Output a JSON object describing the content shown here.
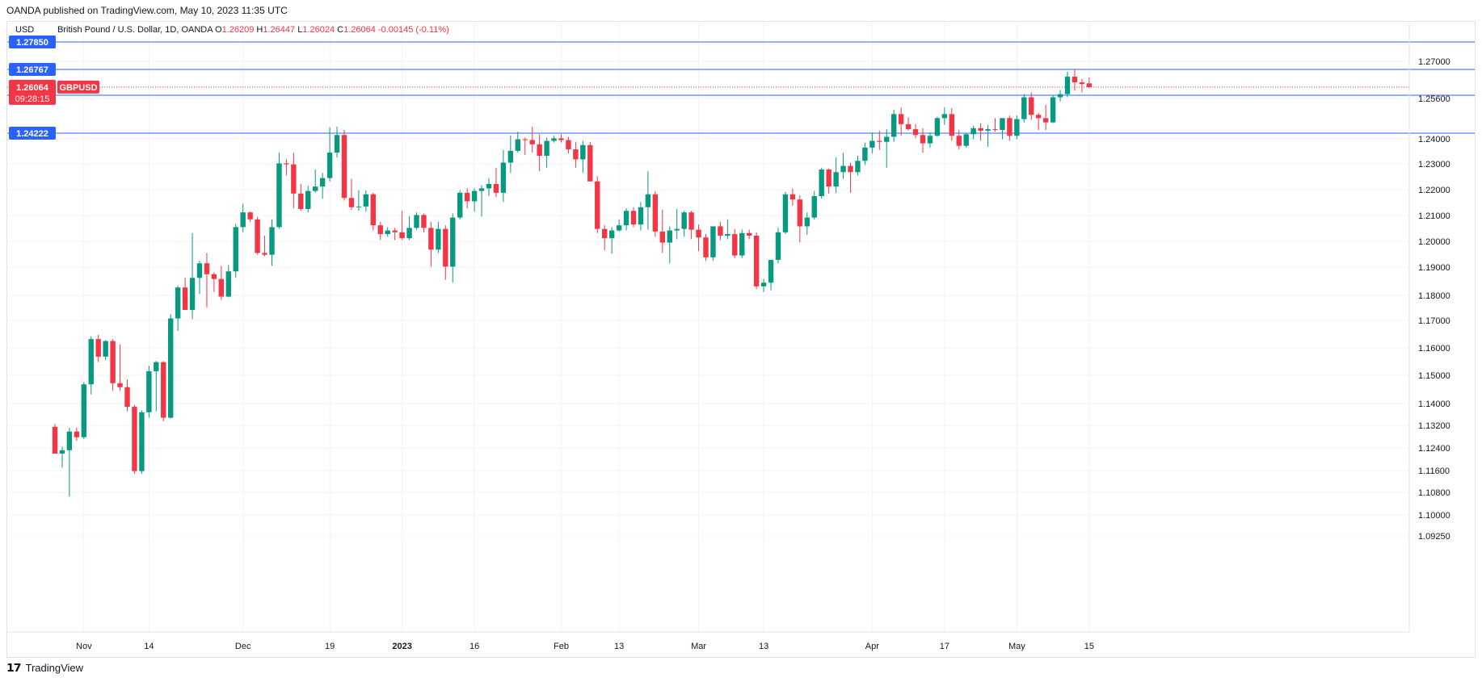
{
  "header": {
    "published_text": "OANDA published on TradingView.com, May 10, 2023 11:35 UTC"
  },
  "footer": {
    "brand": "TradingView",
    "brand_icon": "tradingview-logo-icon"
  },
  "chart_data": {
    "type": "candlestick",
    "currency_label": "USD",
    "symbol_title": "British Pound / U.S. Dollar, 1D, OANDA",
    "ohlc_readout": {
      "o_label": "O",
      "o": "1.26209",
      "h_label": "H",
      "h": "1.26447",
      "l_label": "L",
      "l": "1.26024",
      "c_label": "C",
      "c": "1.26064",
      "change": "-0.00145 (-0.11%)"
    },
    "last_price": {
      "price": "1.26064",
      "symbol": "GBPUSD",
      "countdown": "09:28:15",
      "color": "#f23645"
    },
    "horizontal_levels": [
      {
        "price": 1.2785,
        "label": "1.27850"
      },
      {
        "price": 1.26767,
        "label": "1.26767"
      },
      {
        "price": 1.25736,
        "label": "1.25736"
      },
      {
        "price": 1.24222,
        "label": "1.24222"
      }
    ],
    "level_color": "#2962ff",
    "y_ticks": [
      "1.27000",
      "1.25600",
      "1.24000",
      "1.23000",
      "1.22000",
      "1.21000",
      "1.20000",
      "1.19000",
      "1.18000",
      "1.17000",
      "1.16000",
      "1.15000",
      "1.14000",
      "1.13200",
      "1.12400",
      "1.11600",
      "1.10800",
      "1.10000",
      "1.09250"
    ],
    "x_ticks": [
      {
        "label": "Nov",
        "index": 4,
        "bold": false
      },
      {
        "label": "14",
        "index": 13,
        "bold": false
      },
      {
        "label": "Dec",
        "index": 26,
        "bold": false
      },
      {
        "label": "19",
        "index": 38,
        "bold": false
      },
      {
        "label": "2023",
        "index": 48,
        "bold": true
      },
      {
        "label": "16",
        "index": 58,
        "bold": false
      },
      {
        "label": "Feb",
        "index": 70,
        "bold": false
      },
      {
        "label": "13",
        "index": 78,
        "bold": false
      },
      {
        "label": "Mar",
        "index": 89,
        "bold": false
      },
      {
        "label": "13",
        "index": 98,
        "bold": false
      },
      {
        "label": "Apr",
        "index": 113,
        "bold": false
      },
      {
        "label": "17",
        "index": 123,
        "bold": false
      },
      {
        "label": "May",
        "index": 133,
        "bold": false
      },
      {
        "label": "15",
        "index": 143,
        "bold": false
      }
    ],
    "up_color": "#089981",
    "down_color": "#f23645",
    "candles": [
      [
        1.1315,
        1.1325,
        1.1225,
        1.122
      ],
      [
        1.122,
        1.1245,
        1.117,
        1.1232
      ],
      [
        1.1232,
        1.1312,
        1.1065,
        1.1298
      ],
      [
        1.1298,
        1.1312,
        1.1265,
        1.1278
      ],
      [
        1.1278,
        1.1475,
        1.1272,
        1.1468
      ],
      [
        1.1468,
        1.1642,
        1.1432,
        1.1632
      ],
      [
        1.1632,
        1.1648,
        1.1548,
        1.1568
      ],
      [
        1.1568,
        1.1628,
        1.1555,
        1.1625
      ],
      [
        1.1625,
        1.1632,
        1.1445,
        1.1472
      ],
      [
        1.1472,
        1.1612,
        1.1445,
        1.1458
      ],
      [
        1.1458,
        1.1485,
        1.1372,
        1.1388
      ],
      [
        1.1388,
        1.1395,
        1.1148,
        1.1158
      ],
      [
        1.1158,
        1.1375,
        1.1148,
        1.1368
      ],
      [
        1.1368,
        1.1535,
        1.1348,
        1.1515
      ],
      [
        1.1515,
        1.1552,
        1.1372,
        1.1548
      ],
      [
        1.1548,
        1.1552,
        1.1335,
        1.1348
      ],
      [
        1.1348,
        1.1725,
        1.1345,
        1.1708
      ],
      [
        1.1708,
        1.1835,
        1.1662,
        1.1828
      ],
      [
        1.1828,
        1.1862,
        1.1745,
        1.1742
      ],
      [
        1.1742,
        1.2032,
        1.1705,
        1.1862
      ],
      [
        1.1862,
        1.1925,
        1.1805,
        1.1915
      ],
      [
        1.1915,
        1.1955,
        1.1752,
        1.1875
      ],
      [
        1.1875,
        1.1882,
        1.1812,
        1.1858
      ],
      [
        1.1858,
        1.1905,
        1.1782,
        1.1795
      ],
      [
        1.1795,
        1.1908,
        1.1792,
        1.1885
      ],
      [
        1.1885,
        1.2068,
        1.1862,
        1.2055
      ],
      [
        1.2055,
        1.2145,
        1.2035,
        1.2112
      ],
      [
        1.2112,
        1.2115,
        1.2075,
        1.2085
      ],
      [
        1.2085,
        1.2095,
        1.1948,
        1.1955
      ],
      [
        1.1955,
        1.2022,
        1.1942,
        1.1948
      ],
      [
        1.1948,
        1.2085,
        1.1905,
        1.2055
      ],
      [
        1.2055,
        1.2345,
        1.2048,
        1.2302
      ],
      [
        1.2302,
        1.2318,
        1.2255,
        1.2298
      ],
      [
        1.2298,
        1.2345,
        1.2128,
        1.2185
      ],
      [
        1.2185,
        1.2222,
        1.2118,
        1.2125
      ],
      [
        1.2125,
        1.2215,
        1.2112,
        1.2195
      ],
      [
        1.2195,
        1.2278,
        1.2188,
        1.2212
      ],
      [
        1.2212,
        1.2265,
        1.2165,
        1.2245
      ],
      [
        1.2245,
        1.2445,
        1.2232,
        1.2345
      ],
      [
        1.2345,
        1.2448,
        1.2325,
        1.2415
      ],
      [
        1.2415,
        1.2435,
        1.2158,
        1.2168
      ],
      [
        1.2168,
        1.2242,
        1.2122,
        1.2132
      ],
      [
        1.2132,
        1.2198,
        1.2118,
        1.2135
      ],
      [
        1.2135,
        1.2198,
        1.2115,
        1.2182
      ],
      [
        1.2182,
        1.2188,
        1.2042,
        1.2062
      ],
      [
        1.2062,
        1.2075,
        1.2005,
        1.2028
      ],
      [
        1.2028,
        1.2055,
        1.2018,
        1.2042
      ],
      [
        1.2042,
        1.2052,
        1.2005,
        1.2035
      ],
      [
        1.2035,
        1.2118,
        1.2005,
        1.2012
      ],
      [
        1.2012,
        1.2098,
        1.2005,
        1.2052
      ],
      [
        1.2052,
        1.2112,
        1.2045,
        1.2102
      ],
      [
        1.2102,
        1.2108,
        1.2035,
        1.2052
      ],
      [
        1.2052,
        1.2075,
        1.1902,
        1.1968
      ],
      [
        1.1968,
        1.2075,
        1.1955,
        1.2048
      ],
      [
        1.2048,
        1.2062,
        1.1855,
        1.1902
      ],
      [
        1.1902,
        1.2108,
        1.1845,
        1.2092
      ],
      [
        1.2092,
        1.2198,
        1.2085,
        1.2188
      ],
      [
        1.2188,
        1.2205,
        1.2128,
        1.2155
      ],
      [
        1.2155,
        1.2205,
        1.2115,
        1.2195
      ],
      [
        1.2195,
        1.2218,
        1.2095,
        1.2205
      ],
      [
        1.2205,
        1.2245,
        1.2175,
        1.2222
      ],
      [
        1.2222,
        1.2285,
        1.2172,
        1.2188
      ],
      [
        1.2188,
        1.2355,
        1.2152,
        1.2305
      ],
      [
        1.2305,
        1.2412,
        1.2265,
        1.2352
      ],
      [
        1.2352,
        1.2428,
        1.2345,
        1.2398
      ],
      [
        1.2398,
        1.2405,
        1.2335,
        1.2395
      ],
      [
        1.2395,
        1.2448,
        1.2345,
        1.2378
      ],
      [
        1.2378,
        1.2418,
        1.2272,
        1.2332
      ],
      [
        1.2332,
        1.2405,
        1.2285,
        1.2392
      ],
      [
        1.2392,
        1.2412,
        1.2385,
        1.2402
      ],
      [
        1.2402,
        1.2418,
        1.2385,
        1.2395
      ],
      [
        1.2395,
        1.2408,
        1.2342,
        1.2358
      ],
      [
        1.2358,
        1.2388,
        1.2285,
        1.2318
      ],
      [
        1.2318,
        1.2392,
        1.2265,
        1.2375
      ],
      [
        1.2375,
        1.2388,
        1.2232,
        1.2232
      ],
      [
        1.2232,
        1.2252,
        1.2032,
        1.2048
      ],
      [
        1.2048,
        1.2062,
        1.1965,
        1.2012
      ],
      [
        1.2012,
        1.2055,
        1.1952,
        1.2042
      ],
      [
        1.2042,
        1.2085,
        1.2038,
        1.2062
      ],
      [
        1.2062,
        1.2128,
        1.2042,
        1.2118
      ],
      [
        1.2118,
        1.2132,
        1.2055,
        1.2065
      ],
      [
        1.2065,
        1.2152,
        1.2042,
        1.2132
      ],
      [
        1.2132,
        1.2272,
        1.2045,
        1.2182
      ],
      [
        1.2182,
        1.2195,
        1.2018,
        1.2038
      ],
      [
        1.2038,
        1.2122,
        1.1955,
        1.1995
      ],
      [
        1.1995,
        1.2058,
        1.1915,
        1.2042
      ],
      [
        1.2042,
        1.2125,
        1.2008,
        1.2048
      ],
      [
        1.2048,
        1.2118,
        1.2018,
        1.2112
      ],
      [
        1.2112,
        1.2118,
        1.2008,
        1.2045
      ],
      [
        1.2045,
        1.2065,
        1.1962,
        1.2015
      ],
      [
        1.2015,
        1.2028,
        1.1925,
        1.1938
      ],
      [
        1.1938,
        1.2052,
        1.1925,
        1.2058
      ],
      [
        1.2058,
        1.2075,
        1.2005,
        1.2022
      ],
      [
        1.2022,
        1.2085,
        1.2008,
        1.2028
      ],
      [
        1.2028,
        1.2048,
        1.1935,
        1.1945
      ],
      [
        1.1945,
        1.2045,
        1.1935,
        1.2032
      ],
      [
        1.2032,
        1.2045,
        1.2008,
        1.2022
      ],
      [
        1.2022,
        1.2035,
        1.1822,
        1.1832
      ],
      [
        1.1832,
        1.1858,
        1.1812,
        1.1845
      ],
      [
        1.1845,
        1.1918,
        1.1818,
        1.1928
      ],
      [
        1.1928,
        1.2052,
        1.1915,
        1.2035
      ],
      [
        1.2035,
        1.2192,
        1.2028,
        1.2182
      ],
      [
        1.2182,
        1.2205,
        1.2138,
        1.2162
      ],
      [
        1.2162,
        1.2178,
        1.1995,
        1.2058
      ],
      [
        1.2058,
        1.2112,
        1.2025,
        1.2092
      ],
      [
        1.2092,
        1.2195,
        1.2085,
        1.2175
      ],
      [
        1.2175,
        1.2285,
        1.2165,
        1.2278
      ],
      [
        1.2278,
        1.2282,
        1.2185,
        1.2212
      ],
      [
        1.2212,
        1.2325,
        1.2188,
        1.2268
      ],
      [
        1.2268,
        1.2345,
        1.2242,
        1.2292
      ],
      [
        1.2292,
        1.2305,
        1.2188,
        1.2268
      ],
      [
        1.2268,
        1.2332,
        1.2255,
        1.2312
      ],
      [
        1.2312,
        1.2385,
        1.2295,
        1.2365
      ],
      [
        1.2365,
        1.2425,
        1.2342,
        1.2392
      ],
      [
        1.2392,
        1.2432,
        1.2355,
        1.2388
      ],
      [
        1.2388,
        1.2438,
        1.2285,
        1.2408
      ],
      [
        1.2408,
        1.2515,
        1.2388,
        1.2498
      ],
      [
        1.2498,
        1.2525,
        1.2412,
        1.2458
      ],
      [
        1.2458,
        1.2485,
        1.2432,
        1.2438
      ],
      [
        1.2438,
        1.2458,
        1.2402,
        1.2415
      ],
      [
        1.2415,
        1.2442,
        1.2345,
        1.2382
      ],
      [
        1.2382,
        1.2425,
        1.2365,
        1.2412
      ],
      [
        1.2412,
        1.2488,
        1.2408,
        1.2482
      ],
      [
        1.2482,
        1.2525,
        1.2455,
        1.2498
      ],
      [
        1.2498,
        1.2522,
        1.2392,
        1.2412
      ],
      [
        1.2412,
        1.2435,
        1.2358,
        1.2372
      ],
      [
        1.2372,
        1.2422,
        1.2365,
        1.2418
      ],
      [
        1.2418,
        1.2452,
        1.2398,
        1.2442
      ],
      [
        1.2442,
        1.2462,
        1.2392,
        1.2432
      ],
      [
        1.2432,
        1.2455,
        1.2368,
        1.2438
      ],
      [
        1.2438,
        1.2482,
        1.2428,
        1.2435
      ],
      [
        1.2435,
        1.2478,
        1.2398,
        1.2482
      ],
      [
        1.2482,
        1.2492,
        1.2392,
        1.2412
      ],
      [
        1.2412,
        1.2492,
        1.2398,
        1.2478
      ],
      [
        1.2478,
        1.2578,
        1.2465,
        1.2565
      ],
      [
        1.2565,
        1.2585,
        1.2475,
        1.2495
      ],
      [
        1.2495,
        1.2502,
        1.2435,
        1.2482
      ],
      [
        1.2482,
        1.2535,
        1.2435,
        1.2465
      ],
      [
        1.2465,
        1.2575,
        1.2462,
        1.2565
      ],
      [
        1.2565,
        1.2595,
        1.2548,
        1.2578
      ],
      [
        1.2578,
        1.2668,
        1.2565,
        1.2648
      ],
      [
        1.2648,
        1.2678,
        1.2592,
        1.2625
      ],
      [
        1.2625,
        1.2638,
        1.2585,
        1.2618
      ],
      [
        1.2621,
        1.2645,
        1.2602,
        1.2606
      ]
    ]
  }
}
